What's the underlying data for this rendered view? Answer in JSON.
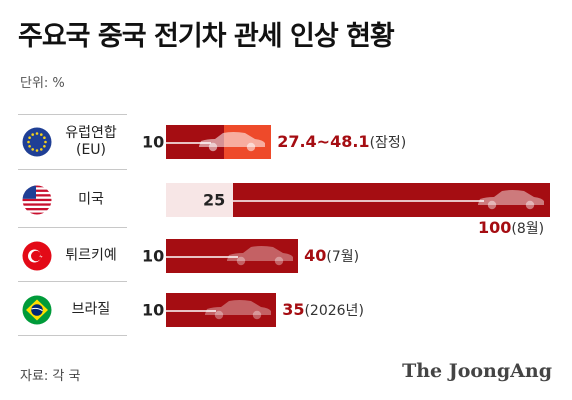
{
  "title": "주요국 중국 전기차 관세 인상 현황",
  "unit": "단위: %",
  "source": "자료: 각 국",
  "logo": "The JoongAng",
  "chart_data": {
    "type": "bar",
    "orientation": "horizontal",
    "title": "주요국 중국 전기차 관세 인상 현황",
    "unit": "단위: %",
    "categories": [
      "유럽연합 (EU)",
      "미국",
      "튀르키예",
      "브라질"
    ],
    "series": [
      {
        "values": [
          10,
          25,
          10,
          10
        ]
      },
      {
        "values": [
          48.1,
          100,
          40,
          35
        ]
      }
    ],
    "eu_provisional_range": [
      27.4,
      48.1
    ],
    "xlim": [
      0,
      100
    ],
    "grid": false,
    "legend": "none"
  },
  "rows": [
    {
      "country": "유럽연합\n(EU)",
      "flag": "eu-flag-icon",
      "base_label": "10",
      "end_label": "27.4~48.1",
      "end_note": "(잠정)"
    },
    {
      "country": "미국",
      "flag": "us-flag-icon",
      "base_label": "25",
      "end_label": "100",
      "end_note": "(8월)"
    },
    {
      "country": "튀르키예",
      "flag": "turkey-flag-icon",
      "base_label": "10",
      "end_label": "40",
      "end_note": "(7월)"
    },
    {
      "country": "브라질",
      "flag": "brazil-flag-icon",
      "base_label": "10",
      "end_label": "35",
      "end_note": "(2026년)"
    }
  ],
  "colors": {
    "bar": "#a50d12",
    "eu_increase": "#ee4a2a",
    "bar_light": "#f7e6e6"
  }
}
